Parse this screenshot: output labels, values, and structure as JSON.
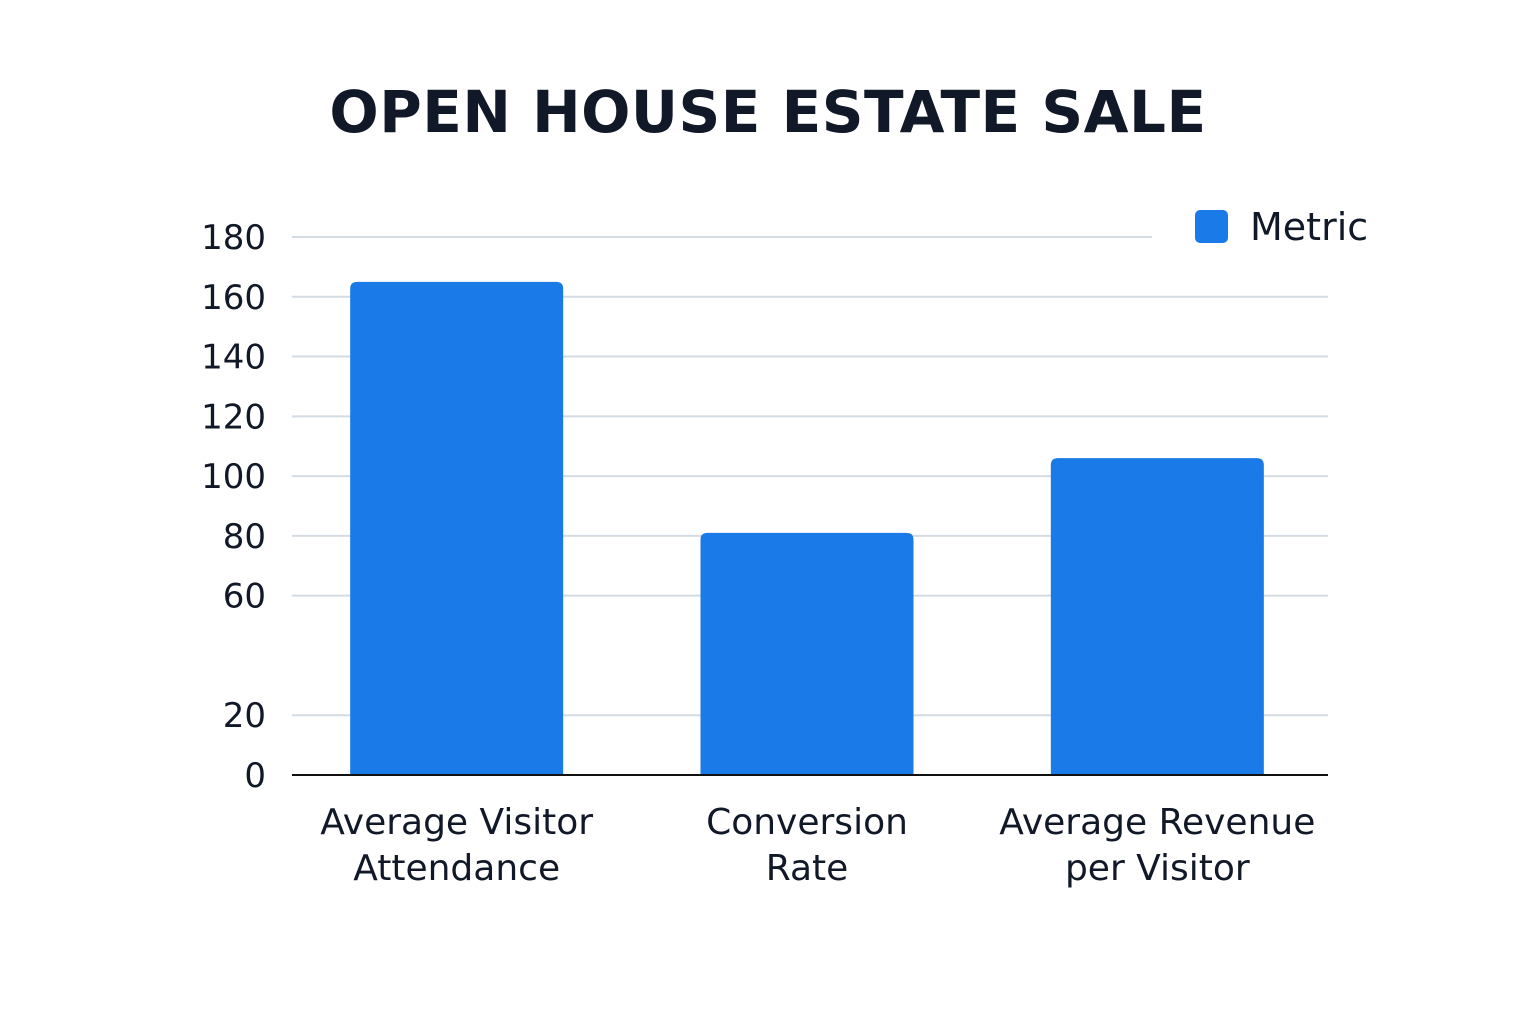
{
  "chart_data": {
    "type": "bar",
    "title": "OPEN HOUSE ESTATE SALE",
    "categories": [
      [
        "Average Visitor",
        "Attendance"
      ],
      [
        "Conversion",
        "Rate"
      ],
      [
        "Average Revenue",
        "per Visitor"
      ]
    ],
    "series": [
      {
        "name": "Metric",
        "values": [
          165,
          81,
          106
        ],
        "color": "#1a7ae8"
      }
    ],
    "yticks": [
      "0",
      "20",
      "60",
      "80",
      "100",
      "120",
      "140",
      "160",
      "180"
    ],
    "ylim": [
      0,
      180
    ],
    "grid": true,
    "legend_position": "top-right"
  }
}
